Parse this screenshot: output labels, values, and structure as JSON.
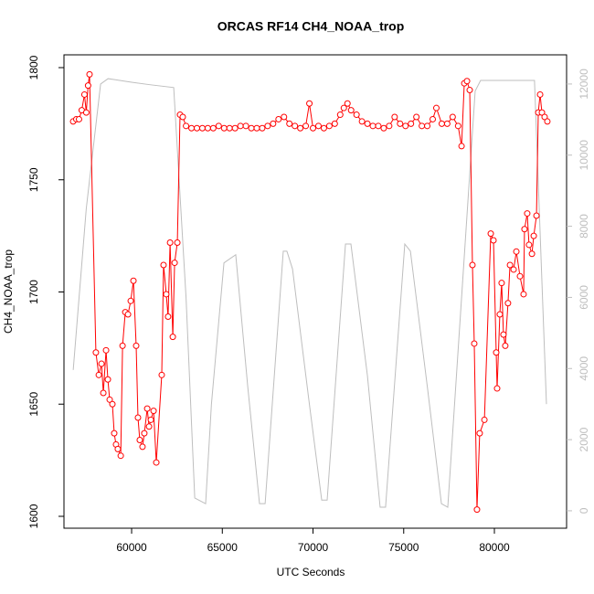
{
  "chart_data": {
    "type": "line",
    "title": "ORCAS RF14 CH4_NOAA_trop",
    "x_label": "UTC Seconds",
    "y_label": "CH4_NOAA_trop",
    "xlim": [
      56270,
      83980
    ],
    "ylim": [
      1594.7,
      1805.7
    ],
    "y2lim": [
      -490,
      12820
    ],
    "xticks": [
      60000,
      65000,
      70000,
      75000,
      80000
    ],
    "yticks": [
      1600,
      1650,
      1700,
      1750,
      1800
    ],
    "y2ticks": [
      0,
      2000,
      4000,
      6000,
      8000,
      10000,
      12000
    ],
    "series": [
      {
        "color": "#bebebe",
        "axis": "y2",
        "markers": false,
        "x": [
          56780,
          57500,
          58290,
          58700,
          60000,
          61000,
          62320,
          63000,
          63480,
          64080,
          64400,
          65090,
          65740,
          66400,
          67050,
          67360,
          68360,
          68560,
          68870,
          69800,
          70480,
          70780,
          71790,
          72090,
          73000,
          73700,
          74000,
          75060,
          75370,
          76300,
          77080,
          77430,
          78940,
          79240,
          80500,
          82210,
          82870
        ],
        "values": [
          3960,
          8500,
          12000,
          12150,
          12050,
          11980,
          11900,
          6000,
          360,
          200,
          3000,
          6970,
          7200,
          3500,
          200,
          200,
          7300,
          7300,
          6800,
          3000,
          300,
          300,
          7500,
          7500,
          3800,
          100,
          100,
          7500,
          7300,
          3500,
          200,
          100,
          11800,
          12100,
          12100,
          12100,
          3000
        ]
      },
      {
        "color": "#ff0000",
        "markers": true,
        "x": [
          56775,
          56950,
          57100,
          57250,
          57400,
          57500,
          57600,
          57680,
          58030,
          58190,
          58340,
          58440,
          58590,
          58690,
          58790,
          58940,
          59040,
          59140,
          59240,
          59400,
          59500,
          59650,
          59800,
          59950,
          60100,
          60250,
          60350,
          60450,
          60600,
          60700,
          60860,
          60960,
          61060,
          61210,
          61360,
          61660,
          61760,
          61910,
          62010,
          62120,
          62270,
          62370,
          62520,
          62670,
          62820,
          63000,
          63300,
          63600,
          63900,
          64200,
          64500,
          64800,
          65100,
          65400,
          65700,
          66000,
          66300,
          66600,
          66900,
          67200,
          67500,
          67800,
          68100,
          68400,
          68700,
          69000,
          69300,
          69600,
          69800,
          70000,
          70300,
          70600,
          70900,
          71200,
          71500,
          71700,
          71900,
          72100,
          72400,
          72700,
          73000,
          73300,
          73600,
          73900,
          74200,
          74500,
          74800,
          75100,
          75400,
          75700,
          76000,
          76300,
          76600,
          76800,
          77100,
          77400,
          77700,
          78000,
          78190,
          78340,
          78490,
          78640,
          78790,
          78890,
          79040,
          79190,
          79450,
          79800,
          79950,
          80100,
          80150,
          80300,
          80400,
          80500,
          80600,
          80750,
          80860,
          81060,
          81210,
          81410,
          81610,
          81660,
          81810,
          81910,
          82070,
          82170,
          82320,
          82420,
          82520,
          82620,
          82770,
          82920
        ],
        "values": [
          1776,
          1777,
          1777,
          1781,
          1788,
          1780,
          1792,
          1797,
          1673,
          1663,
          1668,
          1655,
          1674,
          1661,
          1652,
          1650,
          1637,
          1632,
          1630,
          1627,
          1676,
          1691,
          1690,
          1696,
          1705,
          1676,
          1644,
          1634,
          1631,
          1637,
          1648,
          1640,
          1643,
          1647,
          1624,
          1663,
          1712,
          1699,
          1689,
          1722,
          1680,
          1713,
          1722,
          1779,
          1778,
          1774,
          1773,
          1773,
          1773,
          1773,
          1773,
          1774,
          1773,
          1773,
          1773,
          1774,
          1774,
          1773,
          1773,
          1773,
          1774,
          1775,
          1777,
          1778,
          1775,
          1774,
          1773,
          1774,
          1784,
          1773,
          1774,
          1773,
          1774,
          1775,
          1779,
          1782,
          1784,
          1781,
          1779,
          1776,
          1775,
          1774,
          1774,
          1773,
          1774,
          1778,
          1775,
          1774,
          1775,
          1778,
          1774,
          1774,
          1777,
          1782,
          1775,
          1775,
          1778,
          1774,
          1765,
          1793,
          1794,
          1790,
          1712,
          1677,
          1603,
          1637,
          1643,
          1726,
          1723,
          1673,
          1657,
          1690,
          1704,
          1681,
          1676,
          1695,
          1712,
          1710,
          1718,
          1707,
          1699,
          1728,
          1735,
          1721,
          1717,
          1725,
          1734,
          1780,
          1788,
          1780,
          1778,
          1776
        ]
      }
    ]
  }
}
